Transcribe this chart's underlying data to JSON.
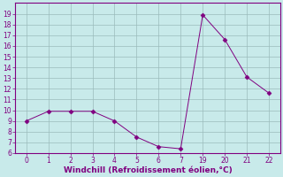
{
  "x_indices": [
    0,
    1,
    2,
    3,
    4,
    5,
    6,
    7,
    8,
    9,
    10,
    11
  ],
  "x_labels": [
    "0",
    "1",
    "2",
    "3",
    "4",
    "5",
    "6",
    "7",
    "19",
    "20",
    "21",
    "22"
  ],
  "y": [
    9.0,
    9.9,
    9.9,
    9.9,
    9.0,
    7.5,
    6.6,
    6.4,
    18.9,
    16.6,
    13.1,
    11.6
  ],
  "line_color": "#800080",
  "marker": "D",
  "marker_size": 2.5,
  "bg_color": "#c8eaea",
  "grid_color": "#9bbcbc",
  "xlabel": "Windchill (Refroidissement éolien,°C)",
  "xlabel_color": "#800080",
  "tick_color": "#800080",
  "ylim": [
    6,
    20
  ],
  "yticks": [
    6,
    7,
    8,
    9,
    10,
    11,
    12,
    13,
    14,
    15,
    16,
    17,
    18,
    19
  ],
  "spine_color": "#800080",
  "tick_fontsize": 5.5,
  "xlabel_fontsize": 6.5
}
